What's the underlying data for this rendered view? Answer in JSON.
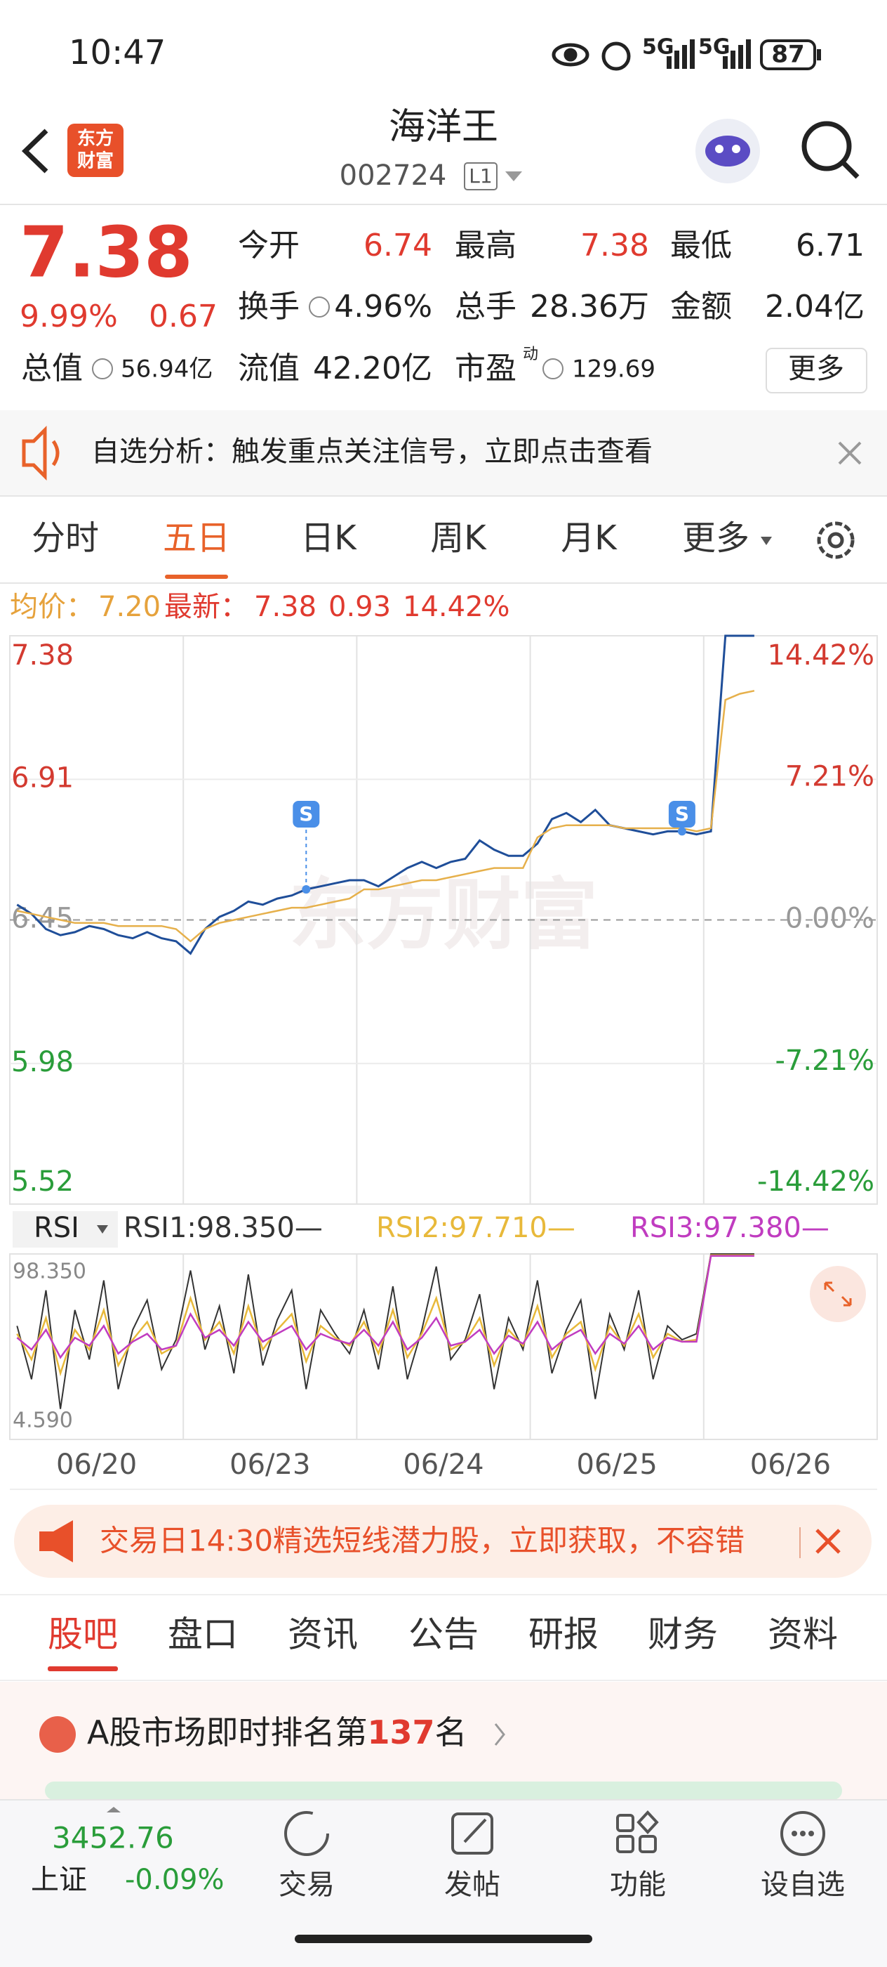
{
  "status_bar": {
    "time": "10:47",
    "network": [
      "5G",
      "5G"
    ],
    "battery": "87"
  },
  "header": {
    "logo": [
      "东方",
      "财富"
    ],
    "title": "海洋王",
    "code": "002724",
    "board": "L1"
  },
  "quote": {
    "price": "7.38",
    "change_pct": "9.99%",
    "change": "0.67",
    "rows": [
      [
        {
          "label": "今开",
          "value": "6.74",
          "color": "#e03a2f"
        },
        {
          "label": "最高",
          "value": "7.38",
          "color": "#e03a2f"
        },
        {
          "label": "最低",
          "value": "6.71",
          "color": "#222222"
        }
      ],
      [
        {
          "label": "换手",
          "value": "4.96%",
          "color": "#222222"
        },
        {
          "label": "总手",
          "value": "28.36万",
          "color": "#222222"
        },
        {
          "label": "金额",
          "value": "2.04亿",
          "color": "#222222"
        }
      ]
    ],
    "total_value_label": "总值",
    "total_value": "56.94亿",
    "float_value_label": "流值",
    "float_value": "42.20亿",
    "pe_label": "市盈",
    "pe_mark": "动",
    "pe": "129.69",
    "more": "更多"
  },
  "alert": {
    "text": "自选分析：触发重点关注信号，立即点击查看"
  },
  "tabs": {
    "items": [
      "分时",
      "五日",
      "日K",
      "周K",
      "月K",
      "更多"
    ],
    "active": 1
  },
  "info": {
    "avg_label": "均价：",
    "avg": "7.20",
    "latest_label": "最新：",
    "latest": "7.38",
    "change": "0.93",
    "change_pct": "14.42%"
  },
  "watermark": "东方财富",
  "signal_label": "S",
  "chart_data": [
    {
      "type": "line",
      "ylim": [
        5.52,
        7.38
      ],
      "yticks": [
        7.38,
        6.91,
        6.45,
        5.98,
        5.52
      ],
      "y2lim": [
        -14.42,
        14.42
      ],
      "y2ticks": [
        {
          "value": 14.42,
          "label": "14.42%"
        },
        {
          "value": 7.21,
          "label": "7.21%"
        },
        {
          "value": 0,
          "label": "0.00%"
        },
        {
          "value": -7.21,
          "label": "-7.21%"
        },
        {
          "value": -14.42,
          "label": "-14.42%"
        }
      ],
      "series": [
        {
          "color": "#1f4e99",
          "values": [
            [
              6.5,
              6.47,
              6.42,
              6.4,
              6.41,
              6.43,
              6.42,
              6.4,
              6.39,
              6.41,
              6.39,
              6.38
            ],
            [
              6.34,
              6.42,
              6.46,
              6.48,
              6.51,
              6.5,
              6.52,
              6.53,
              6.55,
              6.56,
              6.57,
              6.58
            ],
            [
              6.58,
              6.56,
              6.59,
              6.62,
              6.64,
              6.62,
              6.64,
              6.65,
              6.71,
              6.68,
              6.66,
              6.66
            ],
            [
              6.7,
              6.78,
              6.8,
              6.77,
              6.81,
              6.76,
              6.75,
              6.74,
              6.73,
              6.74,
              6.74,
              6.73
            ],
            [
              6.74,
              7.38,
              7.38,
              7.38
            ]
          ]
        },
        {
          "color": "#e6b04b",
          "values": [
            [
              6.48,
              6.47,
              6.46,
              6.45,
              6.44,
              6.44,
              6.44,
              6.43,
              6.43,
              6.43,
              6.43,
              6.42
            ],
            [
              6.38,
              6.42,
              6.44,
              6.45,
              6.46,
              6.47,
              6.48,
              6.49,
              6.49,
              6.5,
              6.51,
              6.52
            ],
            [
              6.55,
              6.55,
              6.56,
              6.57,
              6.58,
              6.58,
              6.59,
              6.6,
              6.61,
              6.62,
              6.62,
              6.62
            ],
            [
              6.72,
              6.75,
              6.76,
              6.76,
              6.76,
              6.76,
              6.75,
              6.75,
              6.75,
              6.75,
              6.75,
              6.74
            ],
            [
              6.75,
              7.17,
              7.19,
              7.2
            ]
          ]
        }
      ]
    },
    {
      "type": "line",
      "selector": "RSI",
      "categories": [
        "06/20",
        "06/23",
        "06/24",
        "06/25",
        "06/26"
      ],
      "ylim": [
        4.59,
        98.35
      ],
      "yticks": [
        {
          "value": 98.35,
          "label": "98.350"
        },
        {
          "value": 4.59,
          "label": "4.590"
        }
      ],
      "series": [
        {
          "name": "RSI1:98.350—",
          "color": "#333333",
          "values": [
            [
              62,
              35,
              80,
              20,
              70,
              45,
              85,
              30,
              60,
              75,
              40,
              55
            ],
            [
              90,
              50,
              72,
              38,
              88,
              42,
              65,
              80,
              30,
              70,
              58,
              48
            ],
            [
              70,
              40,
              82,
              35,
              60,
              92,
              45,
              55,
              78,
              30,
              66,
              50
            ],
            [
              85,
              38,
              60,
              75,
              25,
              68,
              50,
              80,
              35,
              62,
              55,
              58
            ],
            [
              98.35,
              98.35,
              98.35,
              98.35
            ]
          ]
        },
        {
          "name": "RSI2:97.710—",
          "color": "#e8b93a",
          "values": [
            [
              58,
              45,
              66,
              38,
              60,
              50,
              70,
              42,
              55,
              64,
              48,
              52
            ],
            [
              76,
              55,
              64,
              48,
              72,
              50,
              60,
              68,
              44,
              62,
              56,
              52
            ],
            [
              64,
              48,
              70,
              46,
              58,
              76,
              50,
              54,
              66,
              42,
              60,
              52
            ],
            [
              72,
              46,
              58,
              64,
              40,
              62,
              52,
              68,
              46,
              58,
              54,
              55
            ],
            [
              97.71,
              97.71,
              97.71,
              97.71
            ]
          ]
        },
        {
          "name": "RSI3:97.380—",
          "color": "#c03cc0",
          "values": [
            [
              56,
              50,
              60,
              46,
              56,
              52,
              62,
              48,
              54,
              58,
              50,
              52
            ],
            [
              68,
              56,
              60,
              52,
              64,
              54,
              58,
              62,
              50,
              58,
              55,
              53
            ],
            [
              60,
              52,
              64,
              50,
              56,
              66,
              52,
              54,
              60,
              48,
              57,
              53
            ],
            [
              64,
              50,
              56,
              60,
              48,
              58,
              53,
              62,
              50,
              56,
              54,
              54
            ],
            [
              97.38,
              97.38,
              97.38,
              97.38
            ]
          ]
        }
      ]
    }
  ],
  "banner": {
    "text": "交易日14:30精选短线潜力股，立即获取，不容错"
  },
  "bottom_tabs": {
    "items": [
      "股吧",
      "盘口",
      "资讯",
      "公告",
      "研报",
      "财务",
      "资料"
    ],
    "active": 0
  },
  "rank": {
    "prefix": "A股市场即时排名第",
    "number": "137",
    "suffix": "名"
  },
  "bottom_nav": {
    "index_value": "3452.76",
    "index_name": "上证",
    "index_change": "-0.09%",
    "items": [
      "交易",
      "发帖",
      "功能",
      "设自选"
    ]
  }
}
